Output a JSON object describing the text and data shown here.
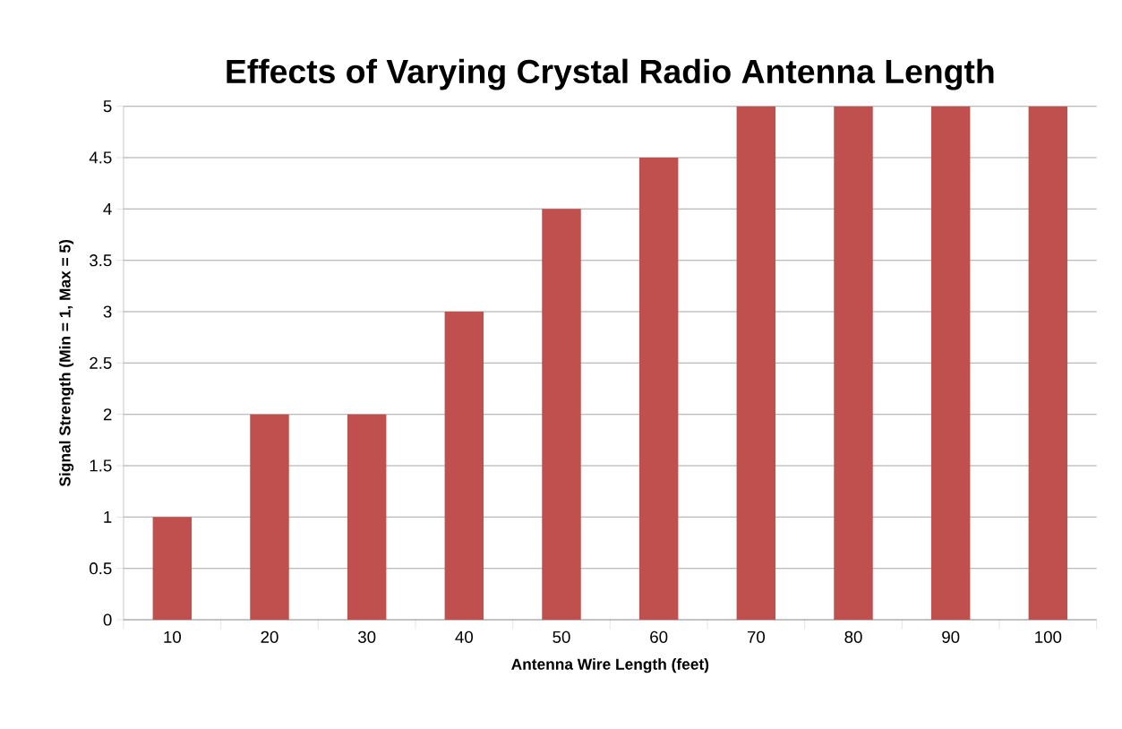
{
  "chart_data": {
    "type": "bar",
    "title": "Effects of Varying Crystal Radio Antenna Length",
    "xlabel": "Antenna Wire Length (feet)",
    "ylabel": "Signal Strength (Min = 1, Max = 5)",
    "categories": [
      "10",
      "20",
      "30",
      "40",
      "50",
      "60",
      "70",
      "80",
      "90",
      "100"
    ],
    "values": [
      1,
      2,
      2,
      3,
      4,
      4.5,
      5,
      5,
      5,
      5
    ],
    "color": "#c0504d",
    "ylim": [
      0,
      5
    ],
    "yticks": [
      0,
      0.5,
      1,
      1.5,
      2,
      2.5,
      3,
      3.5,
      4,
      4.5,
      5
    ],
    "grid": "y"
  }
}
